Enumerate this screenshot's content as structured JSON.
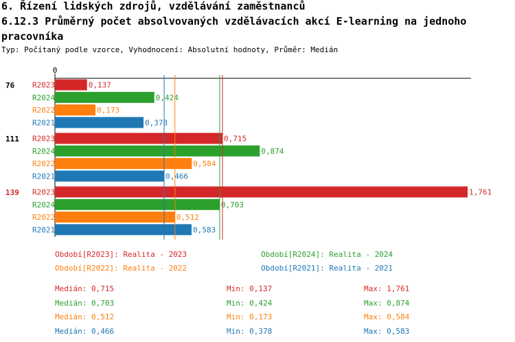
{
  "header": {
    "section": "6. Řízení lidských zdrojů, vzdělávání zaměstnanců",
    "title": "6.12.3 Průměrný počet absolvovaných vzdělávacích akcí E-learning na jednoho pracovníka",
    "subtitle": "Typ: Počítaný podle vzorce, Vyhodnocení: Absolutní hodnoty, Průměr: Medián"
  },
  "colors": {
    "R2023": "#d62728",
    "R2024": "#2ca02c",
    "R2022": "#ff7f0e",
    "R2021": "#1f77b4"
  },
  "chart_data": {
    "type": "bar",
    "orientation": "horizontal",
    "axis_zero_label": "0",
    "xlim": [
      0,
      1.761
    ],
    "groups": [
      {
        "id": "76",
        "highlight": false,
        "bars": [
          {
            "series": "R2023",
            "value": 0.137,
            "label": "0,137"
          },
          {
            "series": "R2024",
            "value": 0.424,
            "label": "0,424"
          },
          {
            "series": "R2022",
            "value": 0.173,
            "label": "0,173"
          },
          {
            "series": "R2021",
            "value": 0.378,
            "label": "0,378"
          }
        ]
      },
      {
        "id": "111",
        "highlight": false,
        "bars": [
          {
            "series": "R2023",
            "value": 0.715,
            "label": "0,715"
          },
          {
            "series": "R2024",
            "value": 0.874,
            "label": "0,874"
          },
          {
            "series": "R2022",
            "value": 0.584,
            "label": "0,584"
          },
          {
            "series": "R2021",
            "value": 0.466,
            "label": "0,466"
          }
        ]
      },
      {
        "id": "139",
        "highlight": true,
        "bars": [
          {
            "series": "R2023",
            "value": 1.761,
            "label": "1,761"
          },
          {
            "series": "R2024",
            "value": 0.703,
            "label": "0,703"
          },
          {
            "series": "R2022",
            "value": 0.512,
            "label": "0,512"
          },
          {
            "series": "R2021",
            "value": 0.583,
            "label": "0,583"
          }
        ]
      }
    ],
    "median_lines": [
      {
        "series": "R2023",
        "value": 0.715
      },
      {
        "series": "R2024",
        "value": 0.703
      },
      {
        "series": "R2022",
        "value": 0.512
      },
      {
        "series": "R2021",
        "value": 0.466
      }
    ],
    "legend": [
      {
        "series": "R2023",
        "text": "Období[R2023]: Realita - 2023"
      },
      {
        "series": "R2024",
        "text": "Období[R2024]: Realita - 2024"
      },
      {
        "series": "R2022",
        "text": "Období[R2022]: Realita - 2022"
      },
      {
        "series": "R2021",
        "text": "Období[R2021]: Realita - 2021"
      }
    ],
    "stats": [
      {
        "series": "R2023",
        "median": "Medián: 0,715",
        "min": "Min: 0,137",
        "max": "Max: 1,761"
      },
      {
        "series": "R2024",
        "median": "Medián: 0,703",
        "min": "Min: 0,424",
        "max": "Max: 0,874"
      },
      {
        "series": "R2022",
        "median": "Medián: 0,512",
        "min": "Min: 0,173",
        "max": "Max: 0,584"
      },
      {
        "series": "R2021",
        "median": "Medián: 0,466",
        "min": "Min: 0,378",
        "max": "Max: 0,583"
      }
    ]
  }
}
